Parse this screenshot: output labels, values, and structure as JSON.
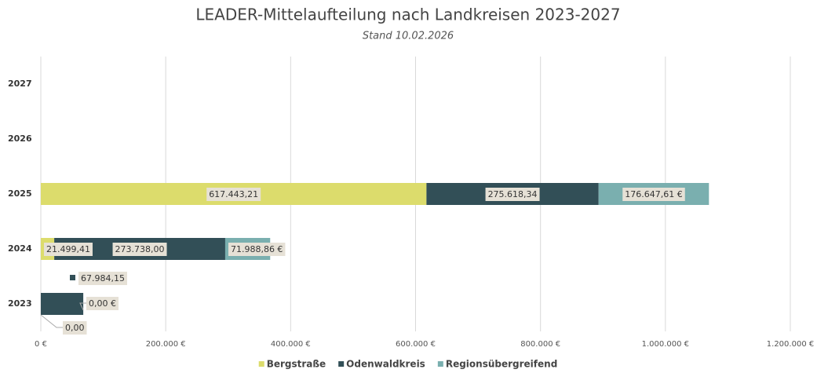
{
  "chart_data": {
    "type": "stacked_barh",
    "title": "LEADER-Mittelaufteilung nach Landkreisen 2023-2027",
    "subtitle": "Stand 10.02.2026",
    "categories": [
      "2023",
      "2024",
      "2025",
      "2026",
      "2027"
    ],
    "series": [
      {
        "name": "Bergstraße",
        "color": "#dcdc6c",
        "values": [
          0,
          21499.41,
          617443.21,
          null,
          null
        ],
        "value_labels": [
          "0,00",
          "21.499,41",
          "617.443,21",
          null,
          null
        ]
      },
      {
        "name": "Odenwaldkreis",
        "color": "#324f57",
        "values": [
          67984.15,
          273738.0,
          275618.34,
          null,
          null
        ],
        "value_labels": [
          "67.984,15",
          "273.738,00",
          "275.618,34",
          null,
          null
        ]
      },
      {
        "name": "Regionsübergreifend",
        "color": "#7aafaf",
        "values": [
          0,
          71988.86,
          176647.61,
          null,
          null
        ],
        "value_labels": [
          "0,00 €",
          "71.988,86 €",
          "176.647,61 €",
          null,
          null
        ]
      }
    ],
    "xlim": [
      0,
      1200000
    ],
    "xticks": [
      {
        "value": 0,
        "label": "0 €"
      },
      {
        "value": 200000,
        "label": "200.000 €"
      },
      {
        "value": 400000,
        "label": "400.000 €"
      },
      {
        "value": 600000,
        "label": "600.000 €"
      },
      {
        "value": 800000,
        "label": "800.000 €"
      },
      {
        "value": 1000000,
        "label": "1.000.000 €"
      },
      {
        "value": 1200000,
        "label": "1.200.000 €"
      }
    ],
    "grid": true,
    "legend": "bottom"
  }
}
